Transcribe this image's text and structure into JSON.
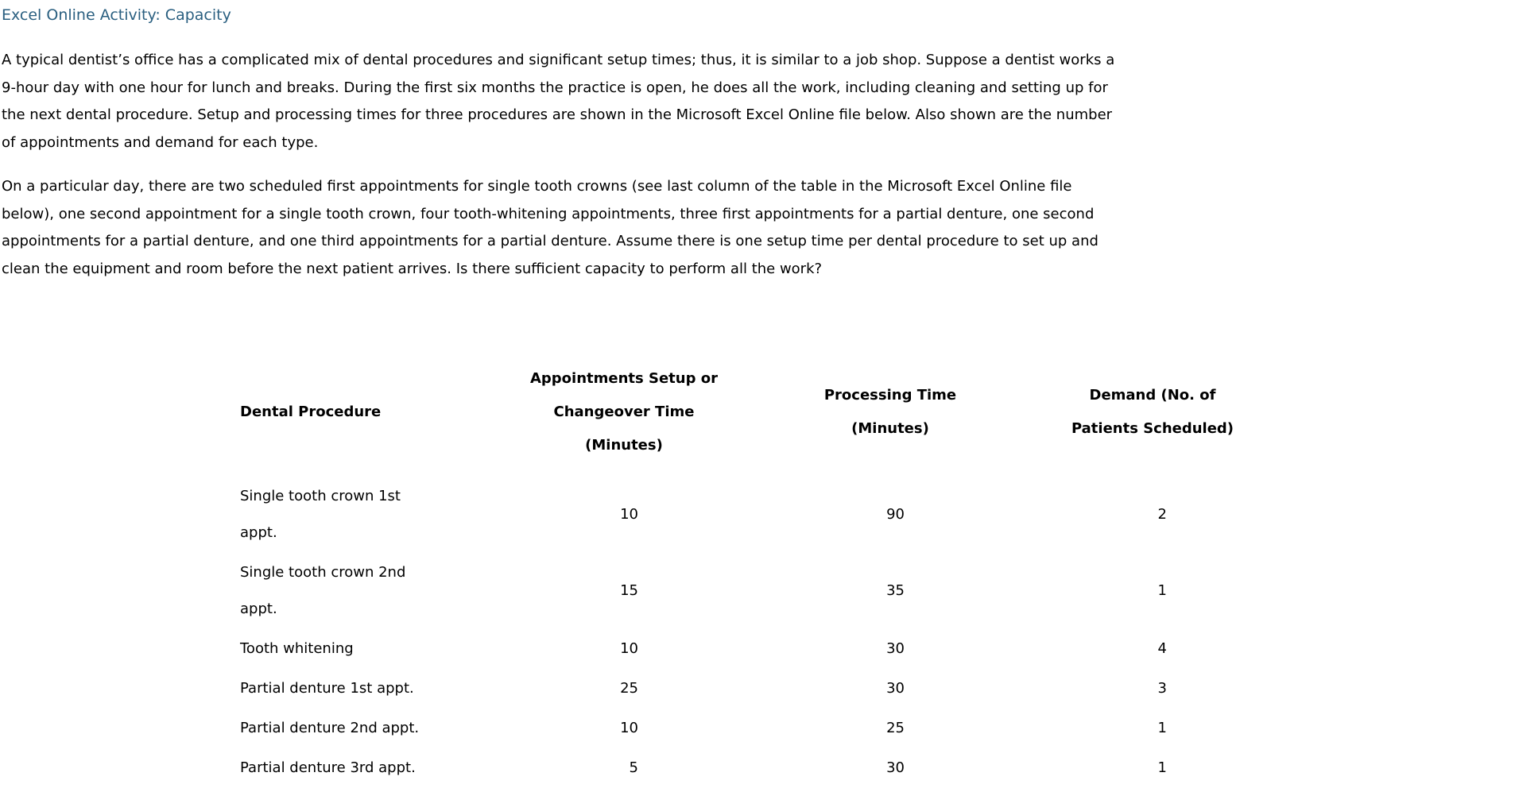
{
  "page": {
    "title": "Excel Online Activity: Capacity"
  },
  "colors": {
    "title_text": "#2a5f80",
    "body_text": "#000000",
    "background": "#ffffff"
  },
  "paragraphs": {
    "p1": "A typical dentist’s office has a complicated mix of dental procedures and significant setup times; thus, it is similar to a job shop. Suppose a dentist works a\n9-hour day with one hour for lunch and breaks. During the first six months the practice is open, he does all the work, including cleaning and setting up for\nthe next dental procedure. Setup and processing times for three procedures are shown in the Microsoft Excel Online file below. Also shown are the number\nof appointments and demand for each type.",
    "p2": "On a particular day, there are two scheduled first appointments for single tooth crowns (see last column of the table in the Microsoft Excel Online file\nbelow), one second appointment for a single tooth crown, four tooth-whitening appointments, three first appointments for a partial denture, one second\nappointments for a partial denture, and one third appointments for a partial denture. Assume there is one setup time per dental procedure to set up and\nclean the equipment and room before the next patient arrives. Is there sufficient capacity to perform all the work?"
  },
  "table": {
    "columns": {
      "procedure": "Dental Procedure",
      "setup": "Appointments Setup or\nChangeover Time\n(Minutes)",
      "processing": "Processing Time\n(Minutes)",
      "demand": "Demand (No. of\nPatients Scheduled)"
    },
    "rows": [
      {
        "procedure": "Single tooth crown 1st\nappt.",
        "setup": "10",
        "processing": "90",
        "demand": "2"
      },
      {
        "procedure": "Single tooth crown 2nd\nappt.",
        "setup": "15",
        "processing": "35",
        "demand": "1"
      },
      {
        "procedure": "Tooth whitening",
        "setup": "10",
        "processing": "30",
        "demand": "4"
      },
      {
        "procedure": "Partial denture 1st appt.",
        "setup": "25",
        "processing": "30",
        "demand": "3"
      },
      {
        "procedure": "Partial denture 2nd appt.",
        "setup": "10",
        "processing": "25",
        "demand": "1"
      },
      {
        "procedure": "Partial denture 3rd appt.",
        "setup": "5",
        "processing": "30",
        "demand": "1"
      }
    ]
  }
}
